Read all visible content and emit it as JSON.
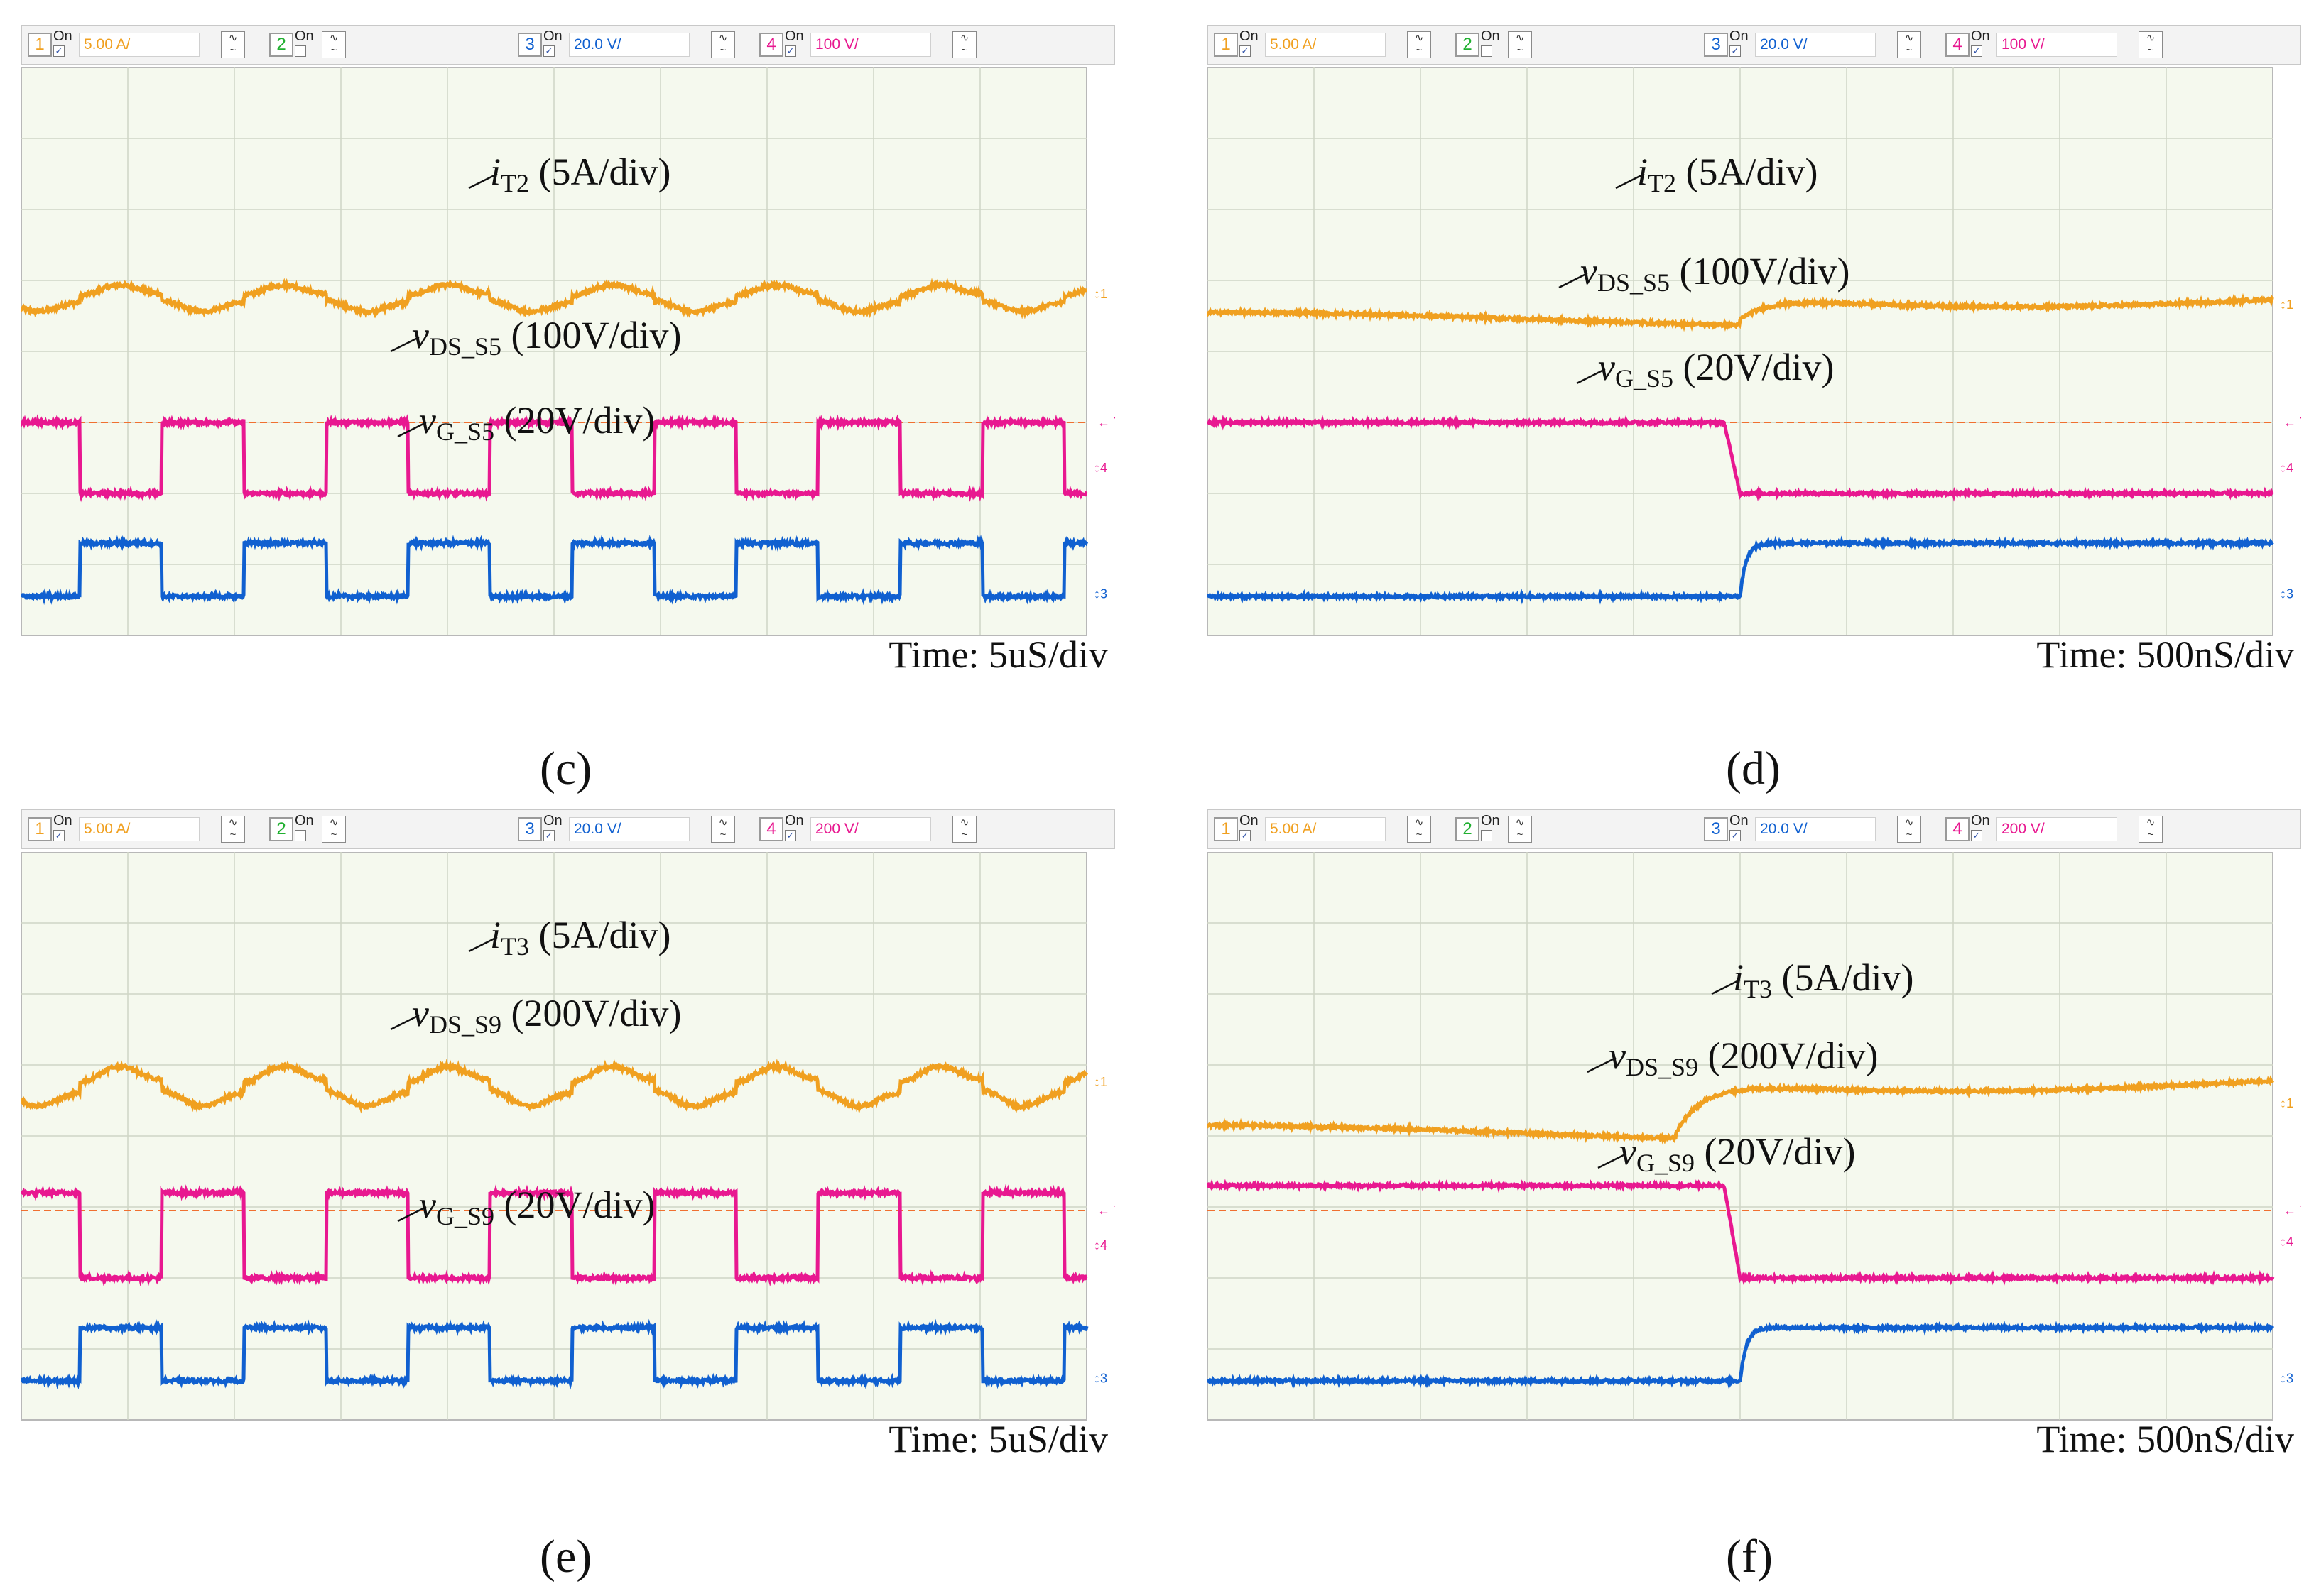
{
  "header": {
    "on_label": "On",
    "channels": [
      {
        "num": "1",
        "value": "5.00 A/",
        "on": true,
        "color": "#f0a020"
      },
      {
        "num": "2",
        "value": "",
        "on": false,
        "color": "#20b030"
      },
      {
        "num": "3",
        "value": "20.0 V/",
        "on": true,
        "color": "#1060d0"
      },
      {
        "num": "4",
        "value": "",
        "on": true,
        "color": "#e81890"
      }
    ]
  },
  "marker_labels": {
    "ch1": "↕1",
    "ch3": "↕3",
    "ch4": "↕4",
    "trigger": "← T"
  },
  "chart_data": [
    {
      "type": "line",
      "panel": "c",
      "caption": "(c)",
      "ch4_scale": "100 V/",
      "time_label": "Time: 5uS/div",
      "xlabel": "Time",
      "xunit": "div",
      "xlim": [
        0,
        10
      ],
      "x_scale": "5uS/div",
      "series": [
        {
          "name": "iT2",
          "label_main": "i",
          "label_sub": "T2",
          "label_scale": " (5A/div)",
          "color": "#f0a020",
          "unit": "div",
          "low": 4.55,
          "high": 4.95,
          "period_div": 1.54,
          "duty": 0.5,
          "first_edge_div": 0.55,
          "shape": "ringing-square"
        },
        {
          "name": "vDS_S5",
          "label_main": "v",
          "label_sub": "DS_S5",
          "label_scale": " (100V/div)",
          "color": "#e81890",
          "unit": "div",
          "low": 2.0,
          "high": 3.0,
          "period_div": 1.54,
          "duty": 0.5,
          "first_edge_div": 0.55,
          "shape": "square-inverted"
        },
        {
          "name": "vG_S5",
          "label_main": "v",
          "label_sub": "G_S5",
          "label_scale": " (20V/div)",
          "color": "#1060d0",
          "unit": "div",
          "low": 0.55,
          "high": 1.3,
          "period_div": 1.54,
          "duty": 0.5,
          "first_edge_div": 0.55,
          "shape": "square"
        }
      ],
      "trigger_level_div": 3.0
    },
    {
      "type": "line",
      "panel": "d",
      "caption": "(d)",
      "ch4_scale": "100 V/",
      "time_label": "Time: 500nS/div",
      "xlabel": "Time",
      "xunit": "div",
      "xlim": [
        0,
        10
      ],
      "x_scale": "500nS/div",
      "series": [
        {
          "name": "iT2",
          "label_main": "i",
          "label_sub": "T2",
          "label_scale": " (5A/div)",
          "color": "#f0a020",
          "unit": "div",
          "low": 4.45,
          "high": 4.75,
          "edge_div": 5.0,
          "shape": "step-up-slow"
        },
        {
          "name": "vDS_S5",
          "label_main": "v",
          "label_sub": "DS_S5",
          "label_scale": " (100V/div)",
          "color": "#e81890",
          "unit": "div",
          "low": 2.0,
          "high": 3.0,
          "edge_div": 4.85,
          "shape": "step-down"
        },
        {
          "name": "vG_S5",
          "label_main": "v",
          "label_sub": "G_S5",
          "label_scale": " (20V/div)",
          "color": "#1060d0",
          "unit": "div",
          "low": 0.55,
          "high": 1.3,
          "edge_div": 5.0,
          "shape": "step-up"
        }
      ],
      "trigger_level_div": 3.0
    },
    {
      "type": "line",
      "panel": "e",
      "caption": "(e)",
      "ch4_scale": "200 V/",
      "time_label": "Time: 5uS/div",
      "xlabel": "Time",
      "xunit": "div",
      "xlim": [
        0,
        10
      ],
      "x_scale": "5uS/div",
      "series": [
        {
          "name": "iT3",
          "label_main": "i",
          "label_sub": "T3",
          "label_scale": " (5A/div)",
          "color": "#f0a020",
          "unit": "div",
          "low": 4.4,
          "high": 5.0,
          "period_div": 1.54,
          "duty": 0.5,
          "first_edge_div": 0.55,
          "shape": "ringing-square"
        },
        {
          "name": "vDS_S9",
          "label_main": "v",
          "label_sub": "DS_S9",
          "label_scale": " (200V/div)",
          "color": "#e81890",
          "unit": "div",
          "low": 2.0,
          "high": 3.2,
          "period_div": 1.54,
          "duty": 0.5,
          "first_edge_div": 0.55,
          "shape": "square-inverted"
        },
        {
          "name": "vG_S9",
          "label_main": "v",
          "label_sub": "G_S9",
          "label_scale": " (20V/div)",
          "color": "#1060d0",
          "unit": "div",
          "low": 0.55,
          "high": 1.3,
          "period_div": 1.54,
          "duty": 0.5,
          "first_edge_div": 0.55,
          "shape": "square"
        }
      ],
      "trigger_level_div": 2.95
    },
    {
      "type": "line",
      "panel": "f",
      "caption": "(f)",
      "ch4_scale": "200 V/",
      "time_label": "Time: 500nS/div",
      "xlabel": "Time",
      "xunit": "div",
      "xlim": [
        0,
        10
      ],
      "x_scale": "500nS/div",
      "series": [
        {
          "name": "iT3",
          "label_main": "i",
          "label_sub": "T3",
          "label_scale": " (5A/div)",
          "color": "#f0a020",
          "unit": "div",
          "low": 4.05,
          "high": 4.75,
          "edge_div": 4.4,
          "shape": "step-up-slow"
        },
        {
          "name": "vDS_S9",
          "label_main": "v",
          "label_sub": "DS_S9",
          "label_scale": " (200V/div)",
          "color": "#e81890",
          "unit": "div",
          "low": 2.0,
          "high": 3.3,
          "edge_div": 4.85,
          "shape": "step-down"
        },
        {
          "name": "vG_S9",
          "label_main": "v",
          "label_sub": "G_S9",
          "label_scale": " (20V/div)",
          "color": "#1060d0",
          "unit": "div",
          "low": 0.55,
          "high": 1.3,
          "edge_div": 5.0,
          "shape": "step-up"
        }
      ],
      "trigger_level_div": 2.95
    }
  ]
}
